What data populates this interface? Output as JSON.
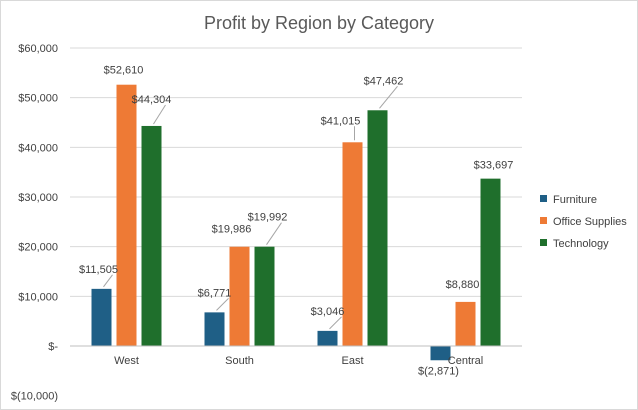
{
  "chart_data": {
    "type": "bar",
    "title": "Profit by Region by Category",
    "categories": [
      "West",
      "South",
      "East",
      "Central"
    ],
    "series": [
      {
        "name": "Furniture",
        "color": "#1f5f86",
        "values": [
          11505,
          6771,
          3046,
          -2871
        ],
        "labels": [
          "$11,505",
          "$6,771",
          "$3,046",
          "$(2,871)"
        ]
      },
      {
        "name": "Office Supplies",
        "color": "#ee7a35",
        "values": [
          52610,
          19986,
          41015,
          8880
        ],
        "labels": [
          "$52,610",
          "$19,986",
          "$41,015",
          "$8,880"
        ]
      },
      {
        "name": "Technology",
        "color": "#1f6f2c",
        "values": [
          44304,
          19992,
          47462,
          33697
        ],
        "labels": [
          "$44,304",
          "$19,992",
          "$47,462",
          "$33,697"
        ]
      }
    ],
    "ylim": [
      -10000,
      60000
    ],
    "yticks": [
      60000,
      50000,
      40000,
      30000,
      20000,
      10000,
      0,
      -10000
    ],
    "ytick_labels": [
      "$60,000",
      "$50,000",
      "$40,000",
      "$30,000",
      "$20,000",
      "$10,000",
      "$-",
      "$(10,000)"
    ],
    "grid": true,
    "legend_position": "right"
  }
}
